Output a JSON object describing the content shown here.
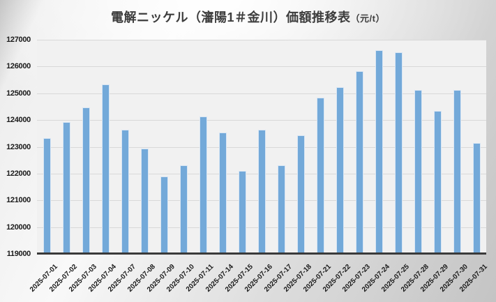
{
  "title": {
    "main": "電解ニッケル（瀋陽1＃金川）価額推移表",
    "unit": "（元/t）"
  },
  "chart_data": {
    "type": "bar",
    "title": "電解ニッケル（瀋陽1＃金川）価額推移表（元/t）",
    "xlabel": "",
    "ylabel": "",
    "x": [
      "2025-07-01",
      "2025-07-02",
      "2025-07-03",
      "2025-07-04",
      "2025-07-07",
      "2025-07-08",
      "2025-07-09",
      "2025-07-10",
      "2025-07-11",
      "2025-07-14",
      "2025-07-15",
      "2025-07-16",
      "2025-07-17",
      "2025-07-18",
      "2025-07-21",
      "2025-07-22",
      "2025-07-23",
      "2025-07-24",
      "2025-07-25",
      "2025-07-28",
      "2025-07-29",
      "2025-07-30",
      "2025-07-31"
    ],
    "values": [
      123280,
      123870,
      124410,
      125290,
      123590,
      122880,
      121850,
      122270,
      124080,
      123470,
      122060,
      123580,
      122270,
      123370,
      124780,
      125180,
      125780,
      126570,
      126480,
      125070,
      124290,
      125070,
      123080
    ],
    "ylim": [
      119000,
      127000
    ],
    "y_ticks": [
      "127000",
      "126000",
      "125000",
      "124000",
      "123000",
      "122000",
      "121000",
      "120000",
      "119000"
    ],
    "grid": "horizontal",
    "legend_position": "none"
  },
  "colors": {
    "bar_fill": "#73a9d9",
    "bar_border": "#d9e6f4",
    "plot_background": "#f1f1f1",
    "gridline": "#d8d8d8",
    "axis_line": "#3a3a3a",
    "text": "#1a1a1a",
    "title_text": "#3d3d3d"
  }
}
